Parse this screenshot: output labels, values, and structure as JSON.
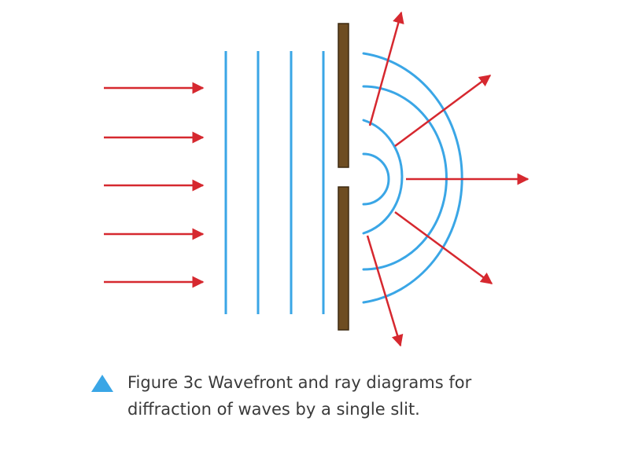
{
  "figure": {
    "caption_line1": "Figure 3c Wavefront and ray diagrams for",
    "caption_line2": "diffraction of waves by a single slit."
  },
  "colors": {
    "wave": "#3aa6e6",
    "ray": "#d6282f",
    "barrier": "#6e4d22",
    "marker": "#3aa6e6",
    "text": "#3a3a3a"
  }
}
